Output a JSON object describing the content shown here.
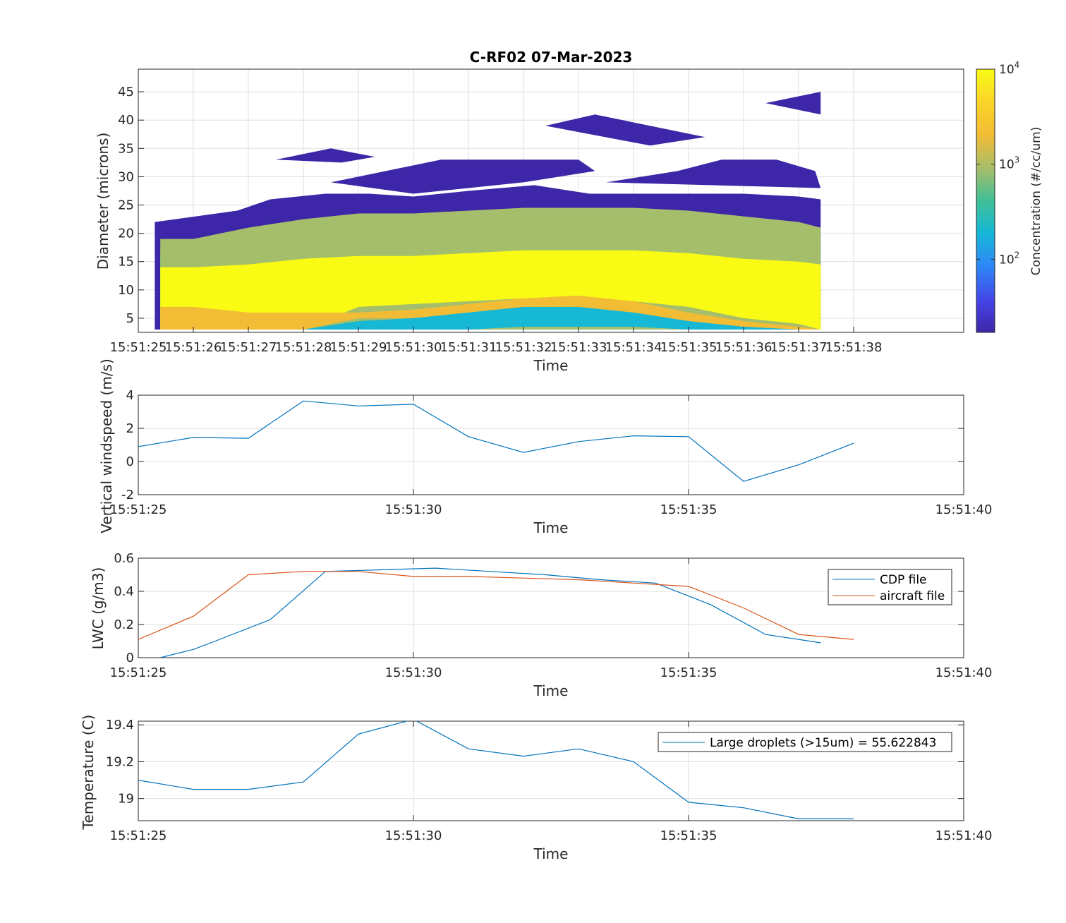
{
  "chart_data": [
    {
      "type": "heatmap",
      "title": "C-RF02 07-Mar-2023",
      "xlabel": "Time",
      "ylabel": "Diameter (microns)",
      "x_ticks": [
        "15:51:25",
        "15:51:26",
        "15:51:27",
        "15:51:28",
        "15:51:29",
        "15:51:30",
        "15:51:31",
        "15:51:32",
        "15:51:33",
        "15:51:34",
        "15:51:35",
        "15:51:36",
        "15:51:37",
        "15:51:38"
      ],
      "y_ticks": [
        5,
        10,
        15,
        20,
        25,
        30,
        35,
        40,
        45
      ],
      "xlim": [
        0,
        15
      ],
      "ylim": [
        2.5,
        49
      ],
      "colorbar": {
        "label": "Concentration (#/cc/um)",
        "scale": "log",
        "range": [
          17,
          10000
        ],
        "tick_labels": [
          {
            "base": "10",
            "exp": "2"
          },
          {
            "base": "10",
            "exp": "3"
          },
          {
            "base": "10",
            "exp": "4"
          }
        ],
        "colors": [
          "#3e26a8",
          "#4444e6",
          "#2e87f7",
          "#16b8d6",
          "#3fbf96",
          "#a5be6b",
          "#f2bc35",
          "#fad528",
          "#f9fb15"
        ]
      },
      "x_seconds": [
        0.4,
        1,
        2,
        3,
        4,
        5,
        6,
        7,
        8,
        9,
        10,
        11,
        12,
        12.4
      ],
      "bands": [
        {
          "level": 2,
          "top": [
            14.5,
            14.5,
            14.5,
            16,
            17,
            17,
            17.5,
            18,
            18,
            18,
            17.5,
            16.5,
            15.5,
            15
          ],
          "bottom": [
            3,
            3,
            3,
            3,
            3,
            3,
            3,
            3,
            3,
            3,
            3,
            3,
            3,
            3
          ]
        },
        {
          "level": 3,
          "top": [
            15.5,
            15.5,
            16,
            17.5,
            18.5,
            18.5,
            19,
            19.5,
            19.5,
            19.5,
            19,
            18,
            17,
            17
          ],
          "bottom": [
            3,
            3,
            3,
            3,
            3,
            3,
            3,
            3,
            3,
            3,
            3,
            3,
            3,
            3
          ]
        },
        {
          "level": 4,
          "top": [
            17,
            17,
            18,
            20,
            21,
            21,
            21.5,
            22,
            22,
            22,
            21.5,
            20.5,
            19.5,
            19
          ],
          "bottom": [
            3,
            3,
            3,
            3,
            3,
            3,
            3,
            3,
            3,
            3,
            3,
            3,
            3,
            3
          ]
        },
        {
          "level": 5,
          "top": [
            19,
            19,
            21,
            22.5,
            23.5,
            23.5,
            24,
            24.5,
            24.5,
            24.5,
            24,
            23,
            22,
            21
          ],
          "bottom": [
            3,
            3,
            3,
            3,
            3,
            3,
            3,
            3,
            3,
            3,
            3,
            3,
            3,
            3
          ]
        },
        {
          "level": 8,
          "top": [
            14,
            14,
            14.5,
            15.5,
            16,
            16,
            16.5,
            17,
            17,
            17,
            16.5,
            15.5,
            15,
            14.5
          ],
          "bottom": [
            3,
            3,
            3,
            3,
            7,
            7.5,
            8,
            8.5,
            8.5,
            8,
            7,
            5,
            4,
            3
          ]
        },
        {
          "level": 6,
          "top": [
            7,
            7,
            6,
            6,
            6,
            6.5,
            7.5,
            8.5,
            9,
            8,
            6,
            4.5,
            3.5,
            3
          ],
          "bottom": [
            3,
            3,
            3,
            3,
            5,
            5,
            5,
            5,
            5,
            5,
            4.5,
            3.5,
            3,
            3
          ]
        },
        {
          "level": 3,
          "top": [
            3,
            3,
            3,
            3,
            4.5,
            5,
            6,
            7,
            7,
            6,
            4.5,
            3.5,
            3,
            3
          ],
          "bottom": [
            3,
            3,
            3,
            3,
            3,
            3,
            3,
            3.5,
            3.5,
            3.5,
            3,
            3,
            3,
            3
          ]
        }
      ],
      "blobs": [
        {
          "x": [
            0.3,
            0.3,
            1.8,
            2.4,
            3.4,
            4.2,
            5.0,
            6.0,
            7.2,
            8.2,
            9.0,
            10.0,
            11.0,
            12.0,
            12.4,
            12.4,
            0.3
          ],
          "y": [
            3,
            22,
            24,
            26,
            27,
            27,
            26.5,
            27.5,
            28.5,
            27,
            27,
            27,
            27,
            26.5,
            26,
            3,
            3
          ]
        },
        {
          "x": [
            2.5,
            3.5,
            4.3,
            3.7,
            2.5
          ],
          "y": [
            33,
            35,
            33.5,
            32.5,
            33
          ]
        },
        {
          "x": [
            3.5,
            5.5,
            8.0,
            8.3,
            7.0,
            5.0,
            3.5
          ],
          "y": [
            29,
            33,
            33,
            31,
            29,
            27,
            29
          ]
        },
        {
          "x": [
            7.4,
            8.3,
            10.3,
            9.3,
            7.4
          ],
          "y": [
            39,
            41,
            37,
            35.5,
            39
          ]
        },
        {
          "x": [
            8.5,
            9.8,
            10.6,
            11.6,
            12.3,
            12.4,
            8.5
          ],
          "y": [
            29,
            31,
            33,
            33,
            31,
            28,
            29
          ]
        },
        {
          "x": [
            11.4,
            12.4,
            12.4,
            11.4
          ],
          "y": [
            43,
            45,
            41,
            43
          ]
        },
        {
          "x": [
            7.2,
            8.0,
            9.0,
            8.2,
            7.2
          ],
          "y": [
            3.5,
            4.5,
            3.5,
            3,
            3.5
          ]
        }
      ]
    },
    {
      "type": "line",
      "xlabel": "Time",
      "ylabel": "Vertical windspeed (m/s)",
      "x_ticks": [
        "15:51:25",
        "15:51:30",
        "15:51:35",
        "15:51:40"
      ],
      "y_ticks": [
        "-2",
        "0",
        "2",
        "4"
      ],
      "ylim": [
        -2,
        4
      ],
      "series": [
        {
          "color": "#0072bd",
          "x": [
            0,
            1,
            2,
            3,
            4,
            5,
            6,
            7,
            8,
            9,
            10,
            11,
            12,
            13
          ],
          "y": [
            0.9,
            1.45,
            1.4,
            3.65,
            3.35,
            3.45,
            1.5,
            0.55,
            1.2,
            1.55,
            1.5,
            -1.2,
            -0.2,
            1.1
          ]
        }
      ]
    },
    {
      "type": "line",
      "xlabel": "Time",
      "ylabel": "LWC (g/m3)",
      "x_ticks": [
        "15:51:25",
        "15:51:30",
        "15:51:35",
        "15:51:40"
      ],
      "y_ticks": [
        "0",
        "0.2",
        "0.4",
        "0.6"
      ],
      "ylim": [
        0,
        0.6
      ],
      "legend_position": "top-right",
      "series": [
        {
          "name": "CDP file",
          "color": "#0072bd",
          "x": [
            0.4,
            1,
            1.4,
            2.4,
            3.4,
            4.4,
            5.4,
            6.4,
            7.4,
            8.4,
            9.4,
            10.4,
            11.4,
            12.4
          ],
          "y": [
            0,
            0.05,
            0.1,
            0.23,
            0.52,
            0.53,
            0.54,
            0.52,
            0.5,
            0.47,
            0.45,
            0.32,
            0.14,
            0.09
          ]
        },
        {
          "name": "aircraft file",
          "color": "#d95319",
          "x": [
            0,
            1,
            2,
            3,
            4,
            5,
            6,
            7,
            8,
            9,
            10,
            11,
            12,
            13
          ],
          "y": [
            0.11,
            0.25,
            0.5,
            0.52,
            0.52,
            0.49,
            0.49,
            0.48,
            0.47,
            0.45,
            0.43,
            0.3,
            0.14,
            0.11
          ]
        }
      ]
    },
    {
      "type": "line",
      "xlabel": "Time",
      "ylabel": "Temperature (C)",
      "x_ticks": [
        "15:51:25",
        "15:51:30",
        "15:51:35",
        "15:51:40"
      ],
      "y_ticks": [
        "19",
        "19.2",
        "19.4"
      ],
      "ylim": [
        18.88,
        19.42
      ],
      "legend_position": "top-right",
      "series": [
        {
          "name": "Large droplets (>15um) = 55.622843",
          "color": "#0072bd",
          "x": [
            0,
            1,
            2,
            3,
            4,
            5,
            6,
            7,
            8,
            9,
            10,
            11,
            12,
            13
          ],
          "y": [
            19.1,
            19.05,
            19.05,
            19.09,
            19.35,
            19.43,
            19.27,
            19.23,
            19.27,
            19.2,
            18.98,
            18.95,
            18.89,
            18.89
          ]
        }
      ]
    }
  ]
}
